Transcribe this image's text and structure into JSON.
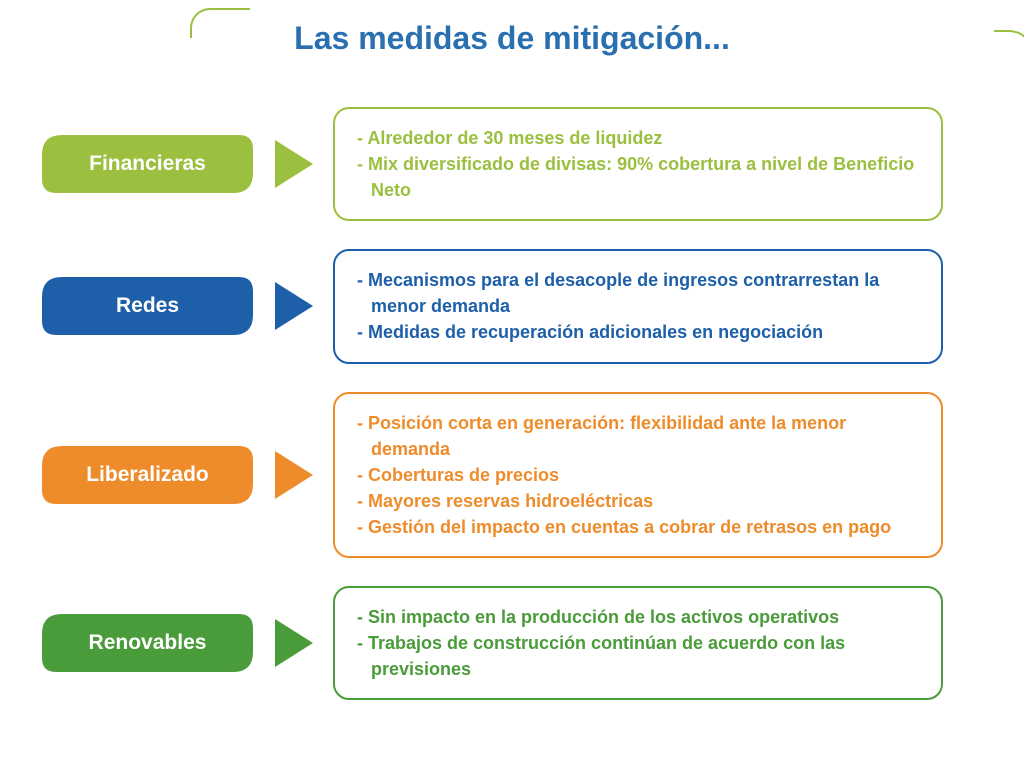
{
  "title": "Las medidas de mitigación...",
  "title_color": "#2a6fb0",
  "accent_green": "#9bbf3f",
  "sections": [
    {
      "id": "financieras",
      "label": "Financieras",
      "color": "#9bbf3f",
      "items": [
        "Alrededor de 30 meses de liquidez",
        "Mix diversificado de divisas: 90% cobertura a nivel de Beneficio Neto"
      ]
    },
    {
      "id": "redes",
      "label": "Redes",
      "color": "#1e5fa9",
      "items": [
        "Mecanismos para el desacople de ingresos contrarrestan la menor demanda",
        "Medidas de recuperación adicionales en negociación"
      ]
    },
    {
      "id": "liberalizado",
      "label": "Liberalizado",
      "color": "#ee8c2b",
      "items": [
        "Posición corta en generación: flexibilidad ante la menor demanda",
        "Coberturas de precios",
        "Mayores reservas hidroeléctricas",
        "Gestión del impacto en cuentas a cobrar de retrasos en pago"
      ]
    },
    {
      "id": "renovables",
      "label": "Renovables",
      "color": "#4a9b3a",
      "items": [
        "Sin impacto en la producción de los activos operativos",
        "Trabajos de construcción continúan de acuerdo con las previsiones"
      ]
    }
  ]
}
